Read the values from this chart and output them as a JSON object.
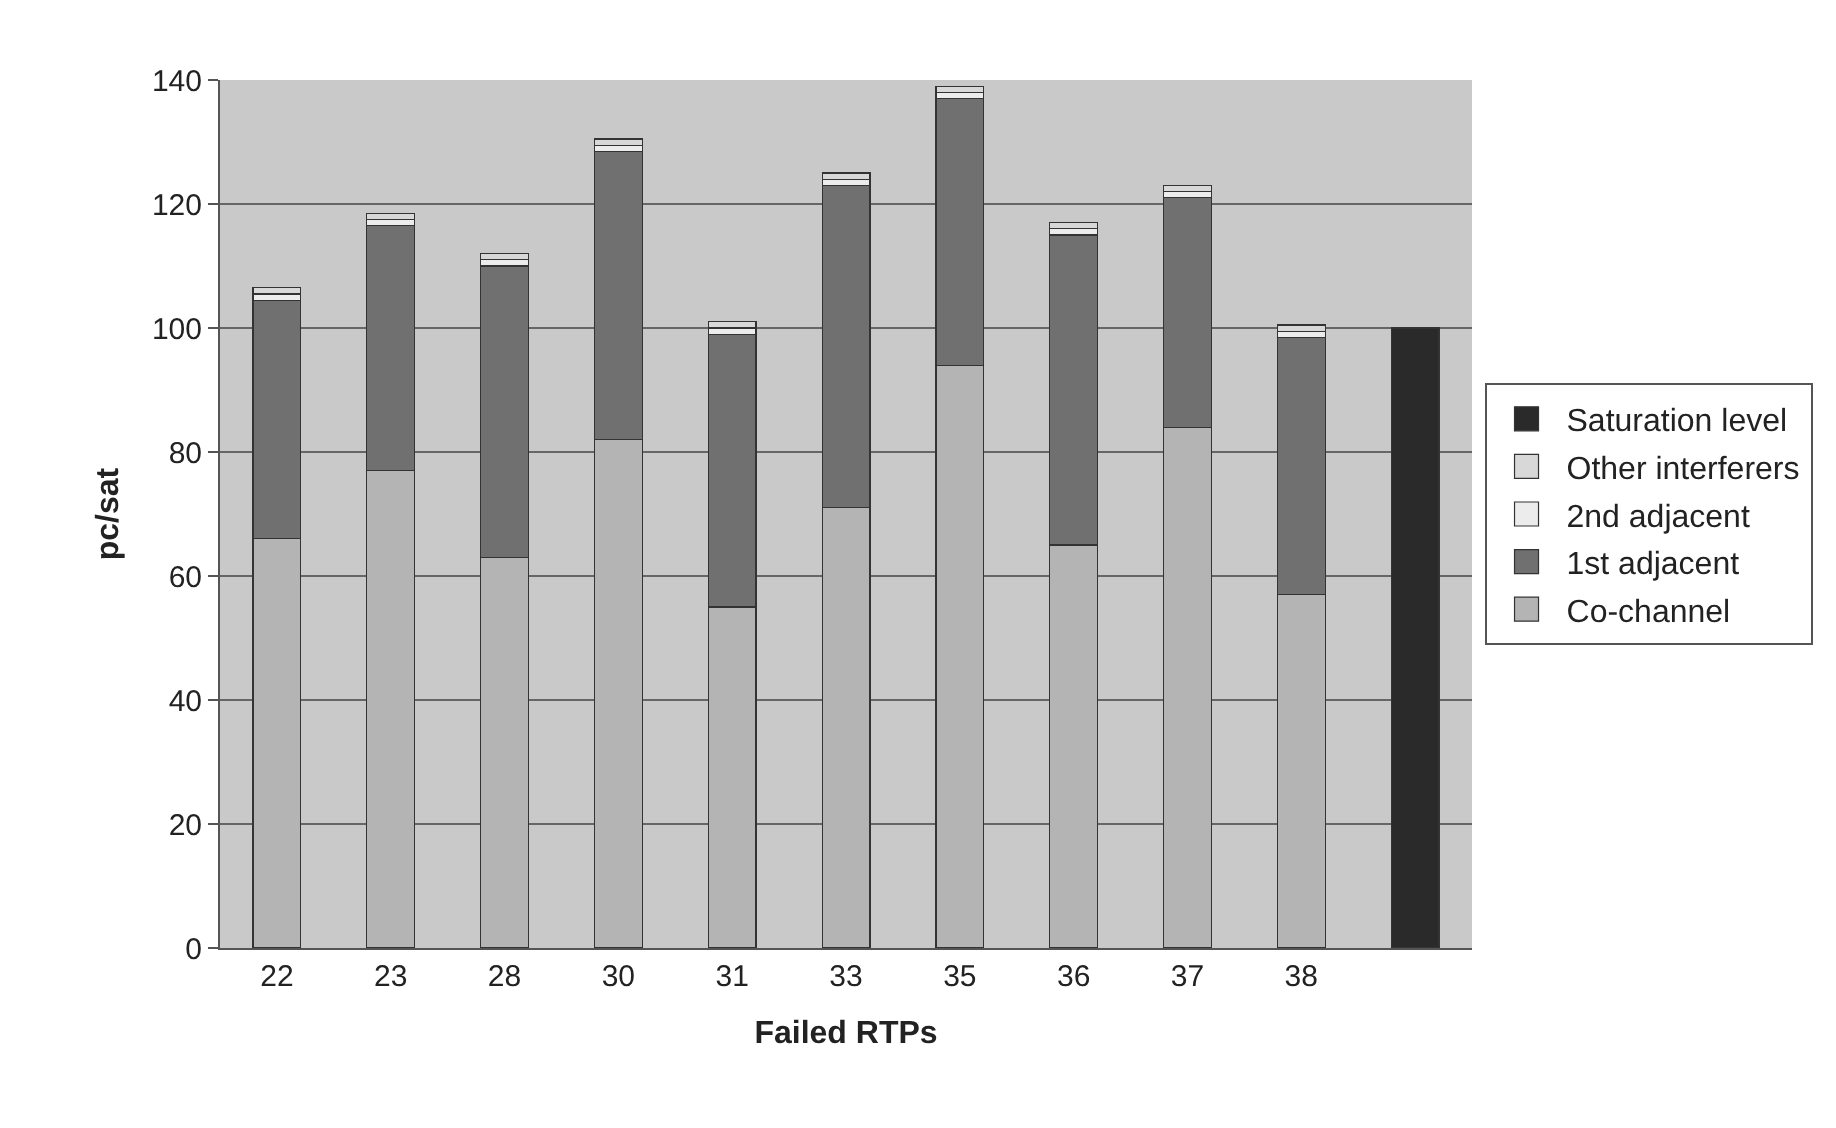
{
  "chart_data": {
    "type": "bar",
    "stacked": true,
    "xlabel": "Failed RTPs",
    "ylabel": "pc/sat",
    "categories": [
      "22",
      "23",
      "28",
      "30",
      "31",
      "33",
      "35",
      "36",
      "37",
      "38",
      null
    ],
    "series": [
      {
        "name": "Co-channel",
        "color": "#b4b4b4",
        "values": [
          66,
          77,
          63,
          82,
          55,
          71,
          94,
          65,
          84,
          57,
          null
        ]
      },
      {
        "name": "1st adjacent",
        "color": "#707070",
        "values": [
          38.5,
          39.5,
          47,
          46.5,
          44,
          52,
          43,
          50,
          37,
          41.5,
          null
        ]
      },
      {
        "name": "2nd adjacent",
        "color": "#ececec",
        "values": [
          1,
          1,
          1,
          1,
          1,
          1,
          1,
          1,
          1,
          1,
          null
        ]
      },
      {
        "name": "Other interferers",
        "color": "#d8d8d8",
        "values": [
          1,
          1,
          1,
          1,
          1,
          1,
          1,
          1,
          1,
          1,
          null
        ]
      },
      {
        "name": "Saturation level",
        "color": "#2a2a2a",
        "values": [
          null,
          null,
          null,
          null,
          null,
          null,
          null,
          null,
          null,
          null,
          100
        ]
      }
    ],
    "ylim": [
      0,
      140
    ],
    "yticks": [
      0,
      20,
      40,
      60,
      80,
      100,
      120,
      140
    ],
    "grid": "y",
    "legend": "right"
  }
}
